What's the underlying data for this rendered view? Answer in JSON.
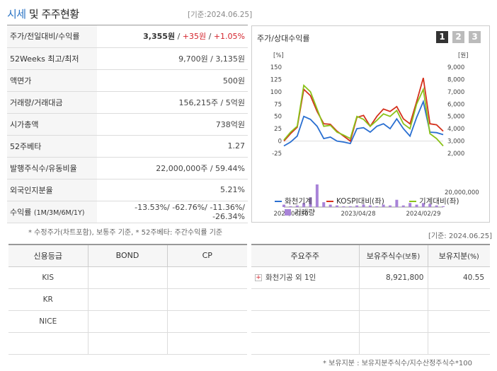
{
  "header": {
    "title_part1": "시세",
    "title_part2": " 및 주주현황",
    "date": "[기준:2024.06.25]"
  },
  "info_rows": [
    {
      "label": "주가/전일대비/수익률"
    },
    {
      "label": "52Weeks 최고/최저",
      "value": "9,700원 / 3,135원"
    },
    {
      "label": "액면가",
      "value": "500원"
    },
    {
      "label": "거래량/거래대금",
      "value": "156,215주 / 5억원"
    },
    {
      "label": "시가총액",
      "value": "738억원"
    },
    {
      "label": "52주베타",
      "value": "1.27"
    },
    {
      "label": "발행주식수/유동비율",
      "value": "22,000,000주 / 59.44%"
    },
    {
      "label": "외국인지분율",
      "value": "5.21%"
    },
    {
      "label": "수익률",
      "label_sub": "(1M/3M/6M/1Y)"
    }
  ],
  "price": {
    "price": "3,355원",
    "sep": " / ",
    "change": "+35원",
    "rate": "+1.05%"
  },
  "returns": {
    "m1": "-13.53%",
    "m3": "-62.76%",
    "m6": "-11.36%",
    "y1": "-26.34%",
    "sep": "/ "
  },
  "notes": {
    "left": "* 수정주가(차트포함), 보통주 기준, * 52주베타: 주간수익률 기준",
    "right_date": "[기준: 2024.06.25]",
    "bottom": "* 보유지분 : 보유지분주식수/지수산정주식수*100"
  },
  "chart": {
    "title": "주가/상대수익률",
    "buttons": [
      "1",
      "2",
      "3"
    ],
    "left_unit": "[%]",
    "right_unit": "[원]",
    "legend": [
      {
        "name": "화천기계",
        "color": "#2a6fd1"
      },
      {
        "name": "KOSPI대비(좌)",
        "color": "#d4301c"
      },
      {
        "name": "기계대비(좌)",
        "color": "#8bc21a"
      },
      {
        "name": "거래량",
        "color": "#a883d8"
      }
    ]
  },
  "chart_data": {
    "type": "line",
    "x_labels": [
      "2022/06/30",
      "2023/04/28",
      "2024/02/29"
    ],
    "y_left_ticks": [
      -25,
      0,
      25,
      50,
      75,
      100,
      125,
      150
    ],
    "y_right_ticks": [
      "2,000",
      "3,000",
      "4,000",
      "5,000",
      "6,000",
      "7,000",
      "8,000",
      "9,000"
    ],
    "volume_tick": "20,000,000",
    "ylim_left": [
      -25,
      150
    ],
    "series": [
      {
        "name": "화천기계",
        "color": "#2a6fd1",
        "values": [
          -10,
          -2,
          10,
          50,
          44,
          30,
          5,
          8,
          0,
          -2,
          -5,
          25,
          27,
          18,
          30,
          35,
          25,
          45,
          25,
          10,
          48,
          80,
          18,
          17,
          13
        ]
      },
      {
        "name": "KOSPI대비(좌)",
        "color": "#d4301c",
        "values": [
          0,
          15,
          28,
          105,
          92,
          60,
          35,
          34,
          20,
          10,
          0,
          48,
          52,
          30,
          50,
          65,
          60,
          70,
          45,
          35,
          80,
          128,
          35,
          33,
          20
        ]
      },
      {
        "name": "기계대비(좌)",
        "color": "#8bc21a",
        "values": [
          2,
          18,
          30,
          113,
          100,
          65,
          30,
          32,
          18,
          12,
          5,
          50,
          44,
          30,
          42,
          55,
          50,
          62,
          35,
          25,
          75,
          105,
          15,
          5,
          -10
        ]
      }
    ],
    "volume": [
      0.3,
      0.1,
      0.2,
      0.5,
      1.2,
      2.8,
      0.6,
      0.3,
      0.2,
      0.1,
      0.1,
      0.2,
      0.3,
      0.2,
      0.1,
      0.3,
      0.2,
      0.9,
      0.2,
      0.5,
      0.3,
      0.5,
      0.4,
      0.2,
      0.1
    ]
  },
  "credit": {
    "headers": [
      "신용등급",
      "BOND",
      "CP"
    ],
    "rows": [
      [
        "KIS",
        "",
        ""
      ],
      [
        "KR",
        "",
        ""
      ],
      [
        "NICE",
        "",
        ""
      ],
      [
        "",
        "",
        ""
      ]
    ]
  },
  "holders": {
    "headers": [
      "주요주주",
      "보유주식수",
      "(보통)",
      "보유지분",
      "(%)"
    ],
    "rows": [
      {
        "name": "화천기공 외 1인",
        "shares": "8,921,800",
        "pct": "40.55"
      },
      {
        "name": "",
        "shares": "",
        "pct": ""
      },
      {
        "name": "",
        "shares": "",
        "pct": ""
      },
      {
        "name": "",
        "shares": "",
        "pct": ""
      }
    ]
  }
}
